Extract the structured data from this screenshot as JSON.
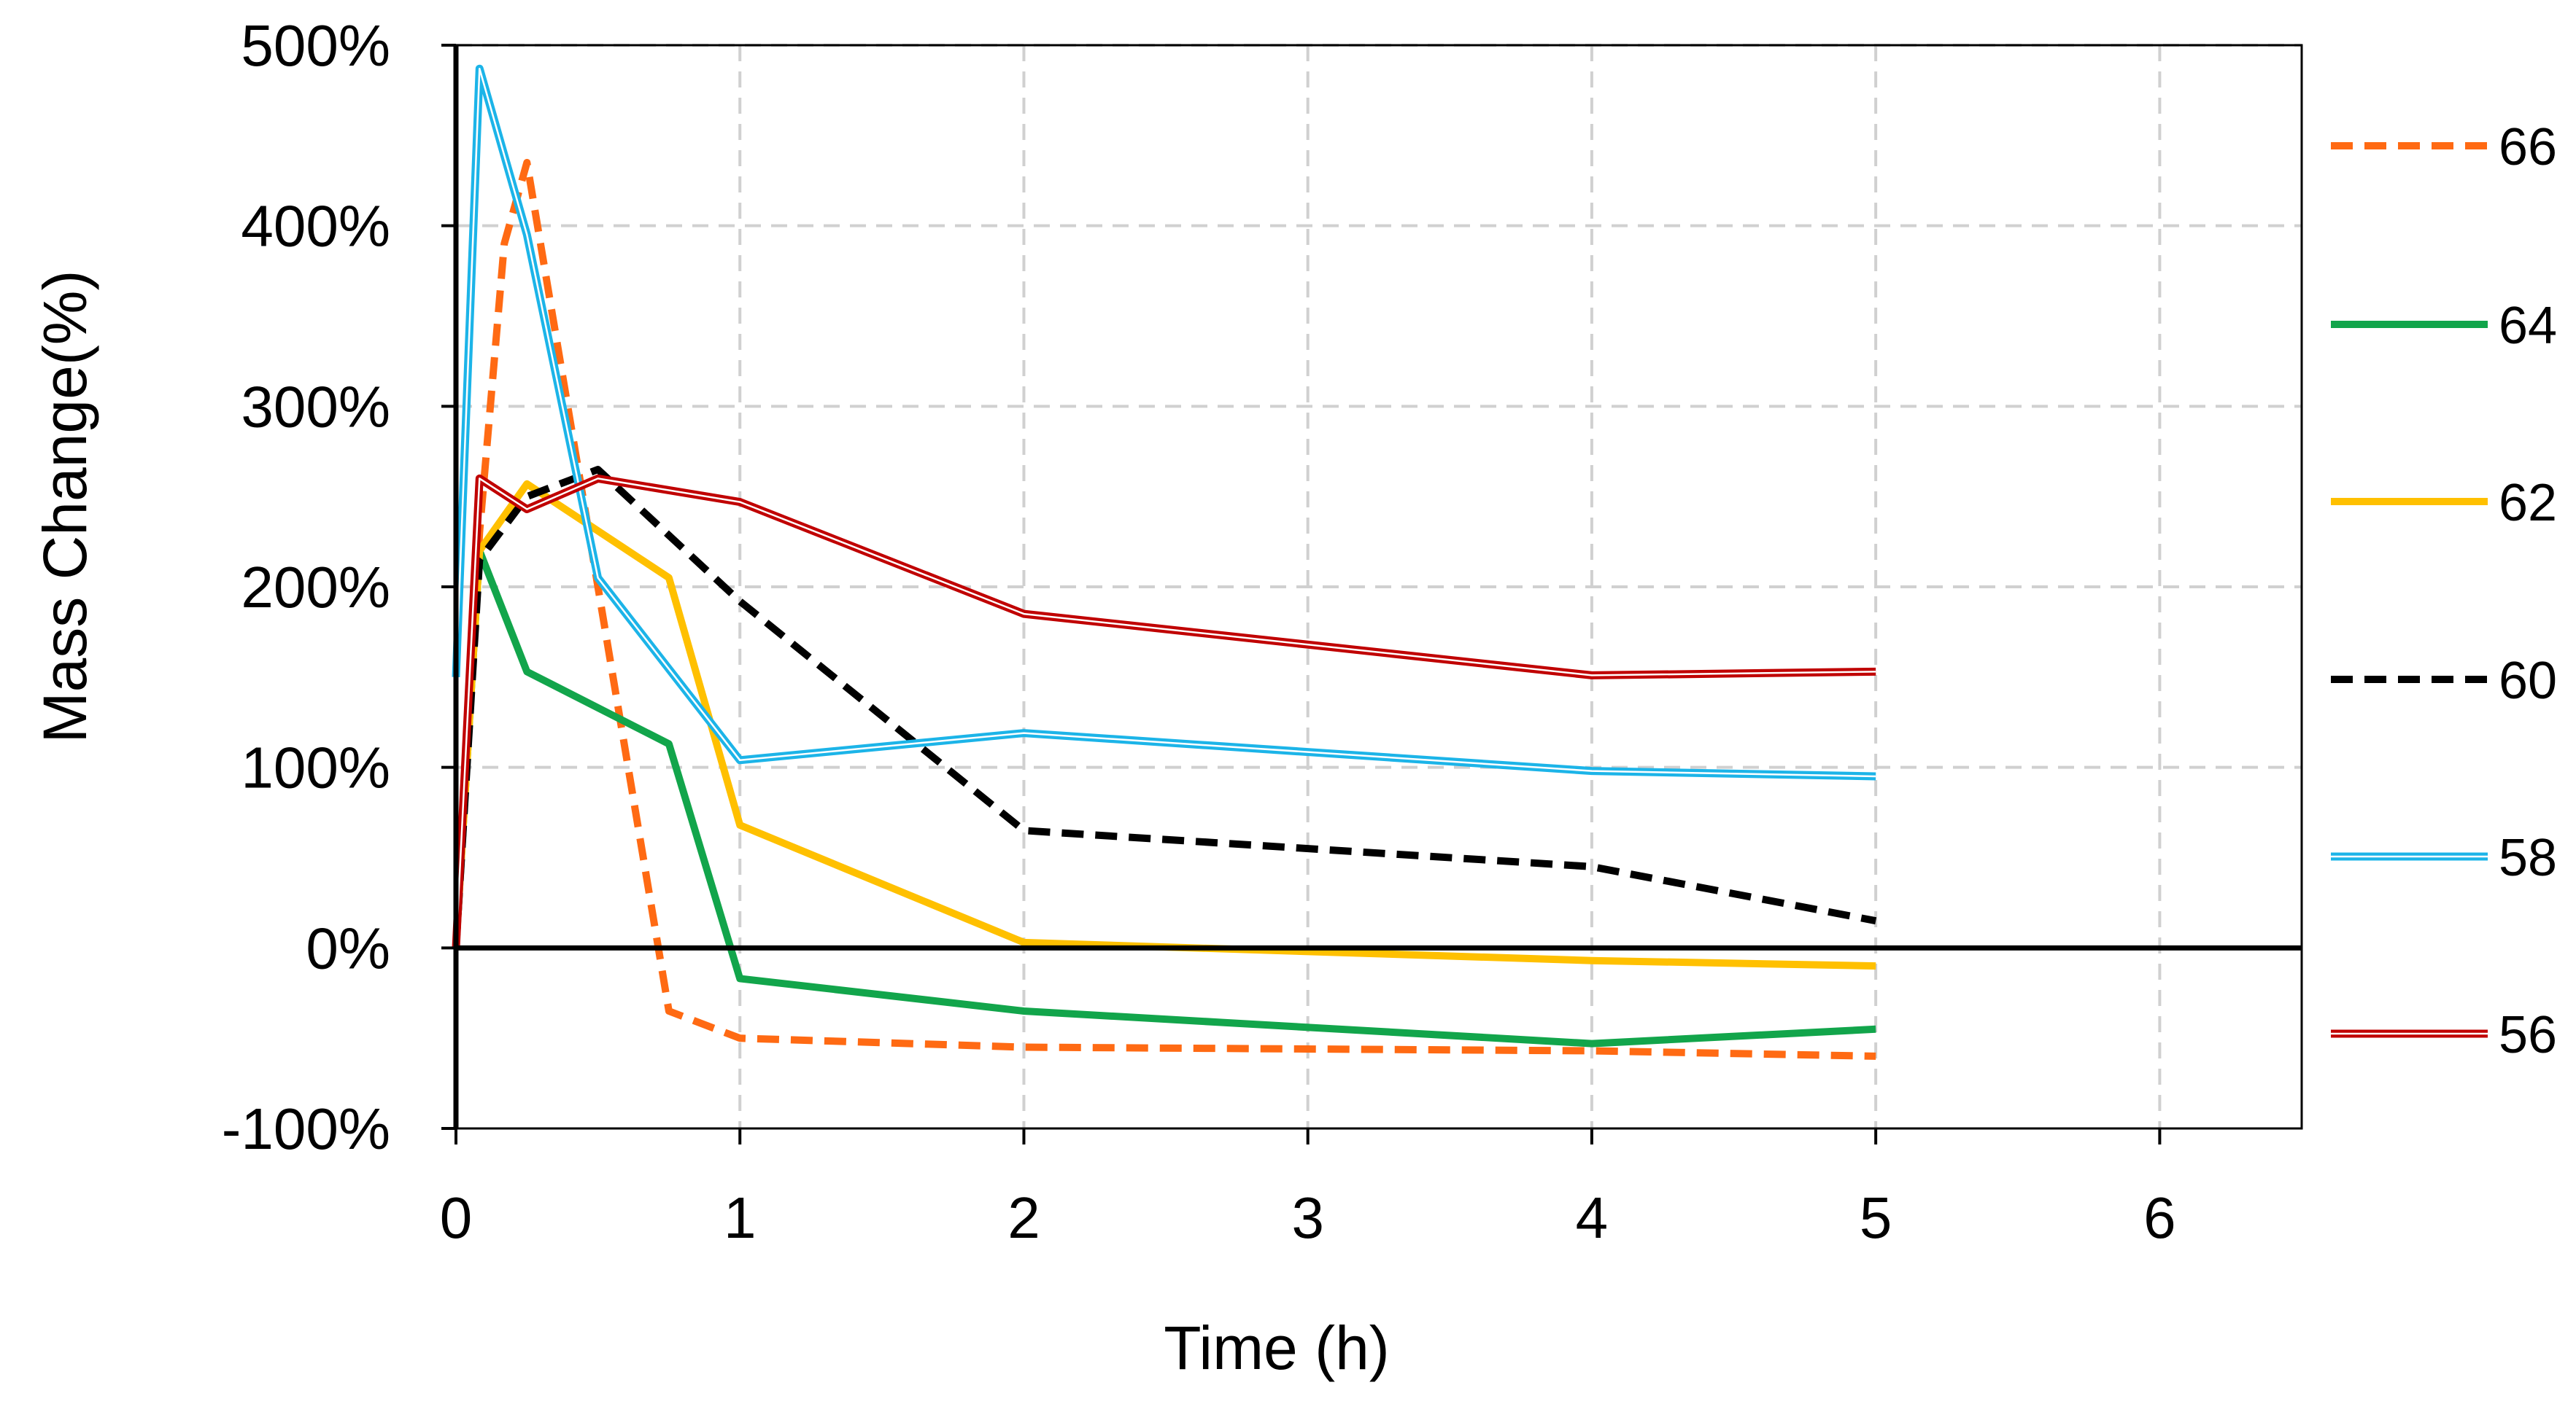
{
  "chart_data": {
    "type": "line",
    "title": "",
    "xlabel": "Time (h)",
    "ylabel": "Mass Change(%)",
    "xlim": [
      0,
      6.5
    ],
    "ylim": [
      -100,
      500
    ],
    "xticks": [
      "0",
      "1",
      "2",
      "3",
      "4",
      "5",
      "6"
    ],
    "yticks": [
      "500%",
      "400%",
      "300%",
      "200%",
      "100%",
      "0%",
      "-100%"
    ],
    "xtick_values": [
      0,
      1,
      2,
      3,
      4,
      5,
      6
    ],
    "ytick_values": [
      500,
      400,
      300,
      200,
      100,
      0,
      -100
    ],
    "grid": true,
    "legend_position": "right",
    "series": [
      {
        "name": "66",
        "color": "#ff6a13",
        "dash": true,
        "double": false,
        "x": [
          0,
          0.083,
          0.17,
          0.25,
          0.5,
          0.75,
          1,
          2,
          4,
          5
        ],
        "y": [
          0,
          230,
          390,
          435,
          200,
          -35,
          -50,
          -55,
          -57,
          -60
        ]
      },
      {
        "name": "64",
        "color": "#12a54b",
        "dash": false,
        "double": false,
        "x": [
          0,
          0.083,
          0.25,
          0.75,
          1,
          2,
          4,
          5
        ],
        "y": [
          0,
          220,
          153,
          113,
          -17,
          -35,
          -53,
          -45
        ]
      },
      {
        "name": "62",
        "color": "#ffc000",
        "dash": false,
        "double": false,
        "x": [
          0,
          0.083,
          0.25,
          0.75,
          1,
          2,
          4,
          5
        ],
        "y": [
          0,
          220,
          257,
          205,
          68,
          3,
          -7,
          -10
        ]
      },
      {
        "name": "60",
        "color": "#000000",
        "dash": true,
        "double": false,
        "x": [
          0,
          0.083,
          0.25,
          0.5,
          1,
          2,
          4,
          5
        ],
        "y": [
          0,
          215,
          250,
          265,
          192,
          65,
          45,
          15
        ]
      },
      {
        "name": "58",
        "color": "#1cb4e8",
        "dash": false,
        "double": true,
        "x": [
          0,
          0.083,
          0.25,
          0.5,
          1,
          2,
          4,
          5
        ],
        "y": [
          150,
          487,
          395,
          205,
          104,
          119,
          98,
          95
        ]
      },
      {
        "name": "56",
        "color": "#c00000",
        "dash": false,
        "double": true,
        "x": [
          0,
          0.083,
          0.25,
          0.5,
          1,
          2,
          4,
          5
        ],
        "y": [
          0,
          260,
          243,
          260,
          247,
          185,
          151,
          153
        ]
      }
    ]
  }
}
